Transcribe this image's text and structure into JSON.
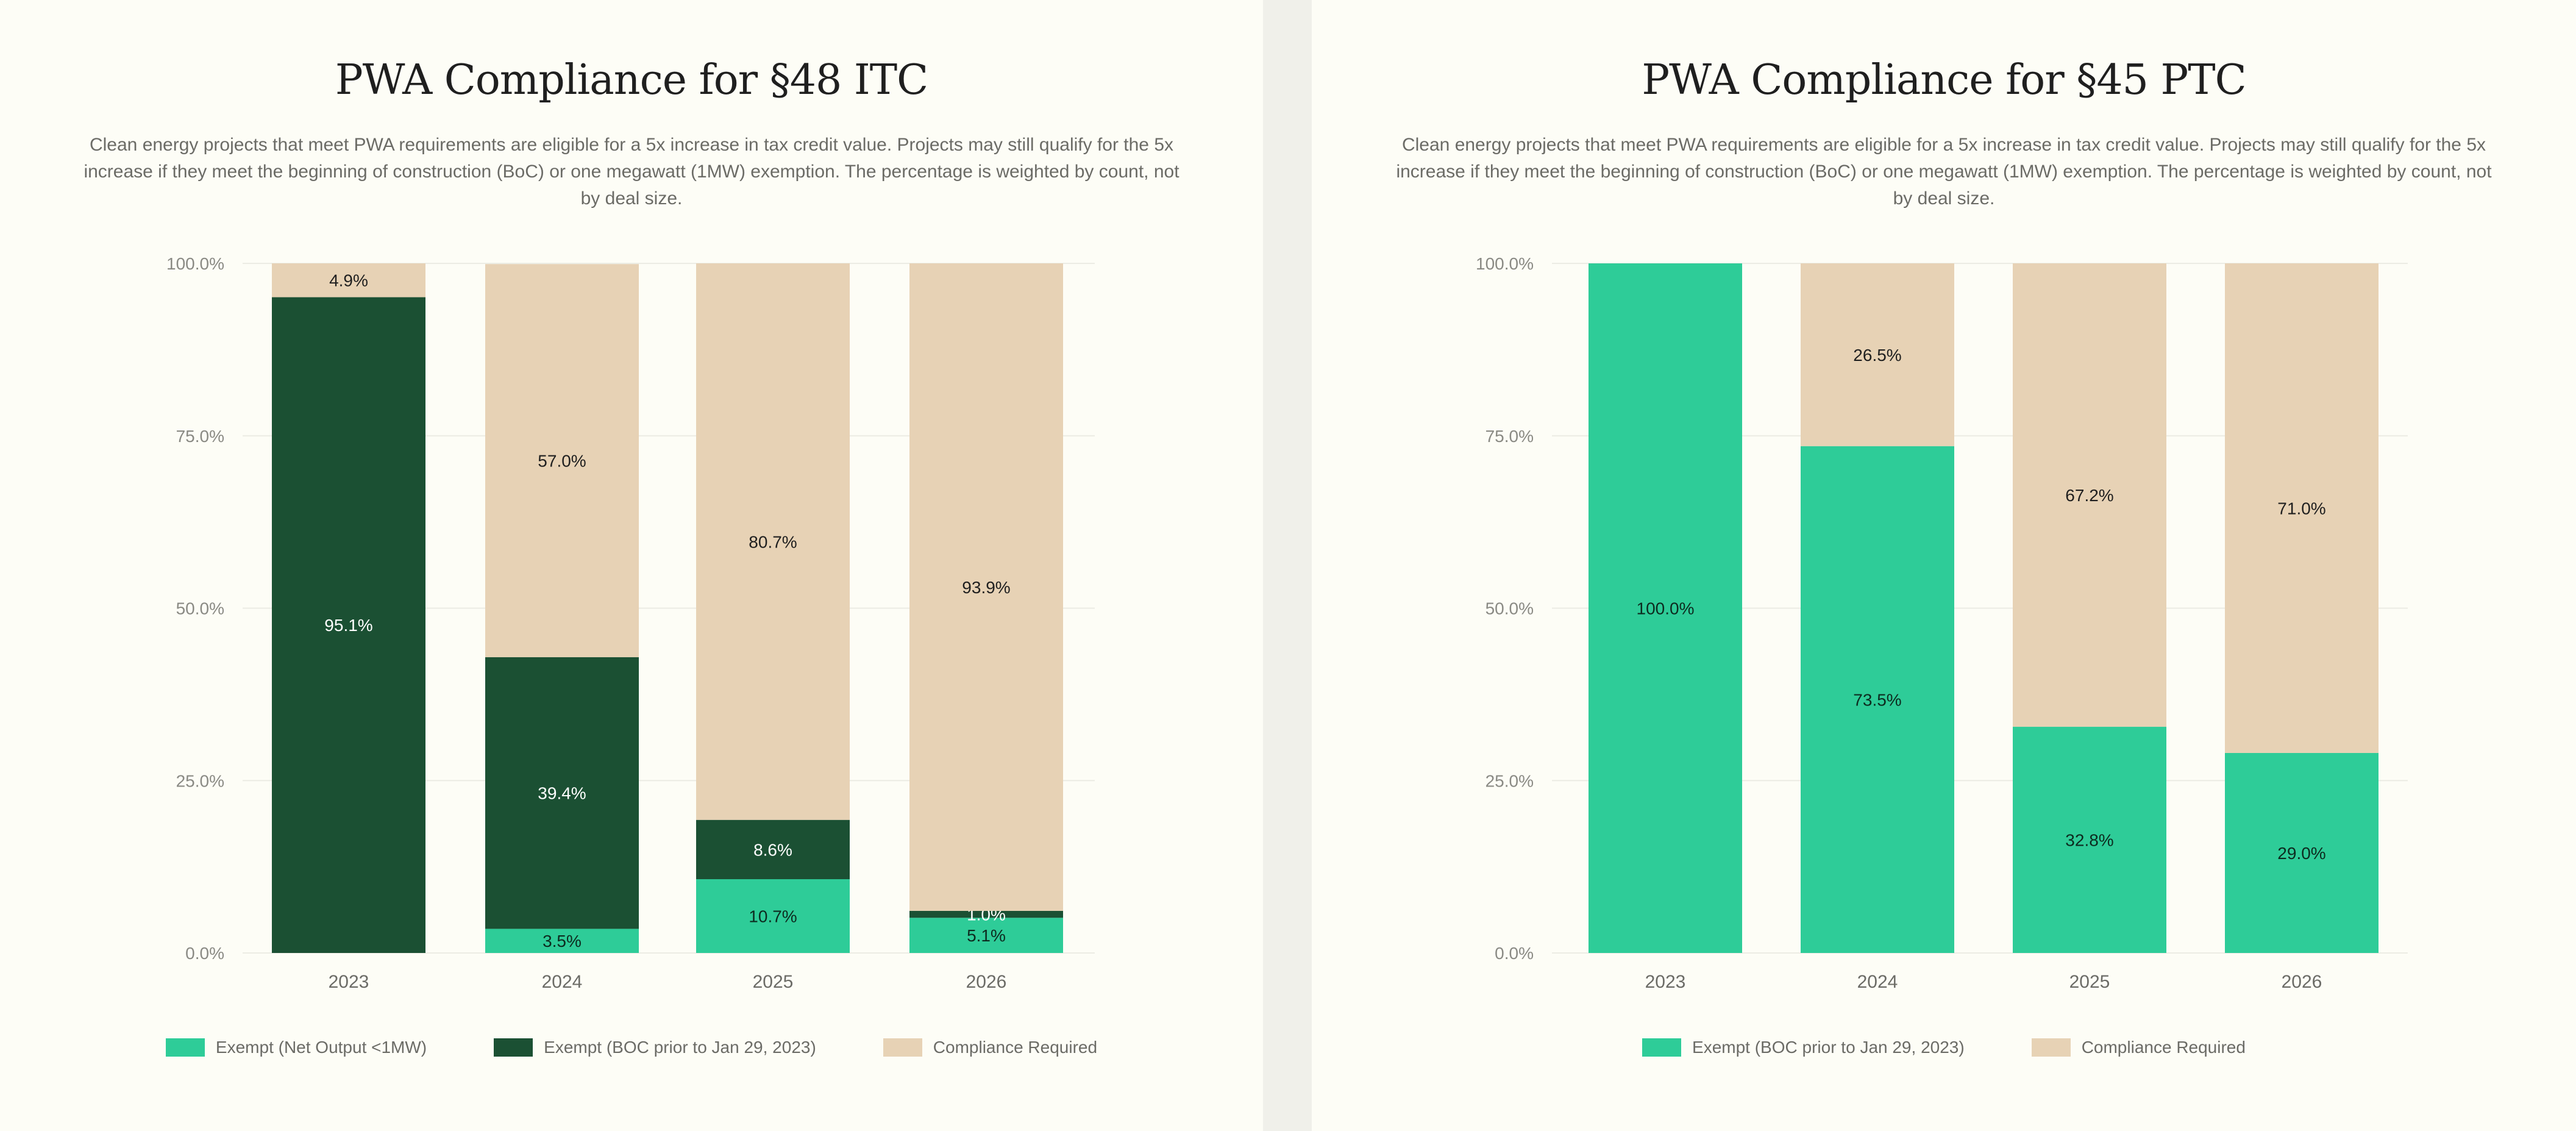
{
  "chart_data": [
    {
      "type": "bar",
      "stacked": true,
      "title": "PWA Compliance for §48 ITC",
      "subtitle": "Clean energy projects that meet PWA requirements are eligible for a 5x increase in tax credit value. Projects may still qualify for the 5x increase if they meet the beginning of construction (BoC) or one megawatt (1MW) exemption. The percentage is weighted by count, not by deal size.",
      "categories": [
        "2023",
        "2024",
        "2025",
        "2026"
      ],
      "ylim": [
        0,
        100
      ],
      "yticks": [
        "0.0%",
        "25.0%",
        "50.0%",
        "75.0%",
        "100.0%"
      ],
      "grid": true,
      "legend_position": "bottom",
      "series": [
        {
          "name": "Exempt (Net Output <1MW)",
          "color": "#2ecc98",
          "label_color": "#0d2b1f",
          "values": [
            0,
            3.5,
            10.7,
            5.1
          ],
          "labels": [
            "",
            "3.5%",
            "10.7%",
            "5.1%"
          ]
        },
        {
          "name": "Exempt (BOC prior to Jan 29, 2023)",
          "color": "#1b5033",
          "label_color": "#ffffff",
          "values": [
            95.1,
            39.4,
            8.6,
            1.0
          ],
          "labels": [
            "95.1%",
            "39.4%",
            "8.6%",
            "1.0%"
          ]
        },
        {
          "name": "Compliance Required",
          "color": "#e7d2b5",
          "label_color": "#1f1f1f",
          "values": [
            4.9,
            57.0,
            80.7,
            93.9
          ],
          "labels": [
            "4.9%",
            "57.0%",
            "80.7%",
            "93.9%"
          ]
        }
      ]
    },
    {
      "type": "bar",
      "stacked": true,
      "title": "PWA Compliance for §45 PTC",
      "subtitle": "Clean energy projects that meet PWA requirements are eligible for a 5x increase in tax credit value. Projects may still qualify for the 5x increase if they meet the beginning of construction (BoC) or one megawatt (1MW) exemption. The percentage is weighted by count, not by deal size.",
      "categories": [
        "2023",
        "2024",
        "2025",
        "2026"
      ],
      "ylim": [
        0,
        100
      ],
      "yticks": [
        "0.0%",
        "25.0%",
        "50.0%",
        "75.0%",
        "100.0%"
      ],
      "grid": true,
      "legend_position": "bottom",
      "series": [
        {
          "name": "Exempt (BOC prior to Jan 29, 2023)",
          "color": "#2ecc98",
          "label_color": "#0d2b1f",
          "values": [
            100.0,
            73.5,
            32.8,
            29.0
          ],
          "labels": [
            "100.0%",
            "73.5%",
            "32.8%",
            "29.0%"
          ]
        },
        {
          "name": "Compliance Required",
          "color": "#e7d2b5",
          "label_color": "#1f1f1f",
          "values": [
            0,
            26.5,
            67.2,
            71.0
          ],
          "labels": [
            "",
            "26.5%",
            "67.2%",
            "71.0%"
          ]
        }
      ]
    }
  ]
}
